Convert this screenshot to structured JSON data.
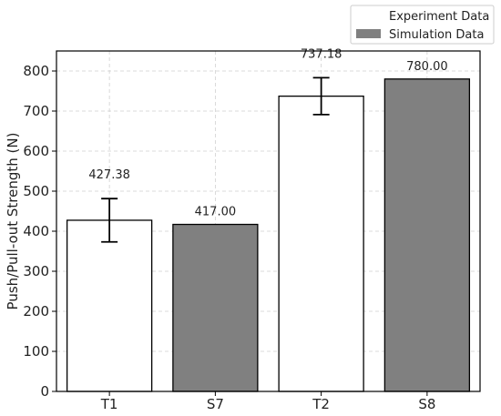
{
  "chart_data": {
    "type": "bar",
    "title": "",
    "xlabel": "",
    "ylabel": "Push/Pull-out Strength (N)",
    "ylim": [
      0,
      850
    ],
    "yticks": [
      0,
      100,
      200,
      300,
      400,
      500,
      600,
      700,
      800
    ],
    "grid": true,
    "legend_position": "top-right",
    "categories": [
      "T1",
      "S7",
      "T2",
      "S8"
    ],
    "values": [
      427.38,
      417.0,
      737.18,
      780.0
    ],
    "value_labels": [
      "427.38",
      "417.00",
      "737.18",
      "780.00"
    ],
    "series_of_bar": [
      "Experiment Data",
      "Simulation Data",
      "Experiment Data",
      "Simulation Data"
    ],
    "error": [
      54,
      null,
      46,
      null
    ],
    "series": [
      {
        "name": "Experiment Data",
        "color": "#ffffff",
        "categories": [
          "T1",
          "T2"
        ]
      },
      {
        "name": "Simulation Data",
        "color": "#808080",
        "categories": [
          "S7",
          "S8"
        ]
      }
    ]
  }
}
